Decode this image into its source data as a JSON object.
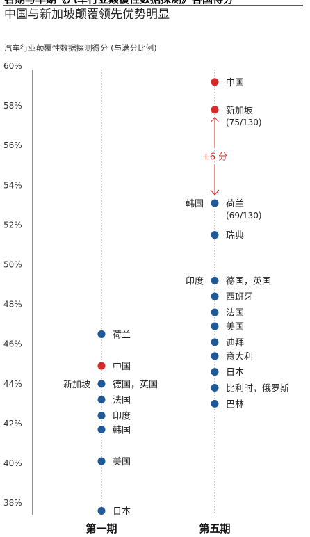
{
  "top_title": "名期与华期《汽车行业颠覆性数据探测》各国得分",
  "title": "中国与新加坡颠覆领先优势明显",
  "subtitle": "汽车行业颠覆性数据探测得分 (与满分比例)",
  "colors": {
    "highlight": "#d62b2b",
    "normal": "#1f5a96",
    "text": "#222222",
    "axis": "#222222",
    "dotted": "#888888"
  },
  "chart_data": {
    "type": "scatter",
    "ylim": [
      37.5,
      60
    ],
    "yticks": [
      {
        "value": 60,
        "label": "60%"
      },
      {
        "value": 58,
        "label": "58%"
      },
      {
        "value": 56,
        "label": "56%"
      },
      {
        "value": 54,
        "label": "54%"
      },
      {
        "value": 52,
        "label": "52%"
      },
      {
        "value": 50,
        "label": "50%"
      },
      {
        "value": 48,
        "label": "48%"
      },
      {
        "value": 46,
        "label": "46%"
      },
      {
        "value": 44,
        "label": "44%"
      },
      {
        "value": 42,
        "label": "42%"
      },
      {
        "value": 40,
        "label": "40%"
      },
      {
        "value": 38,
        "label": "38%"
      }
    ],
    "categories": [
      "第一期",
      "第五期"
    ],
    "points": [
      {
        "period": 0,
        "y": 46.5,
        "label": "荷兰",
        "highlight": false
      },
      {
        "period": 0,
        "y": 44.9,
        "label": "中国",
        "highlight": true
      },
      {
        "period": 0,
        "y": 44.0,
        "label": "德国，英国",
        "left_label": "新加坡",
        "highlight": false
      },
      {
        "period": 0,
        "y": 43.2,
        "label": "法国",
        "highlight": false
      },
      {
        "period": 0,
        "y": 42.4,
        "label": "印度",
        "highlight": false
      },
      {
        "period": 0,
        "y": 41.7,
        "label": "韩国",
        "highlight": false
      },
      {
        "period": 0,
        "y": 40.1,
        "label": "美国",
        "highlight": false
      },
      {
        "period": 0,
        "y": 37.6,
        "label": "日本",
        "highlight": false
      },
      {
        "period": 1,
        "y": 59.2,
        "label": "中国",
        "highlight": true
      },
      {
        "period": 1,
        "y": 57.8,
        "label": "新加坡",
        "sublabel": "(75/130)",
        "highlight": true
      },
      {
        "period": 1,
        "y": 53.1,
        "label": "荷兰",
        "sublabel": "(69/130)",
        "left_label": "韩国",
        "highlight": false
      },
      {
        "period": 1,
        "y": 51.5,
        "label": "瑞典",
        "highlight": false
      },
      {
        "period": 1,
        "y": 49.2,
        "label": "德国，英国",
        "left_label": "印度",
        "highlight": false
      },
      {
        "period": 1,
        "y": 48.4,
        "label": "西班牙",
        "highlight": false
      },
      {
        "period": 1,
        "y": 47.6,
        "label": "法国",
        "highlight": false
      },
      {
        "period": 1,
        "y": 46.9,
        "label": "美国",
        "highlight": false
      },
      {
        "period": 1,
        "y": 46.1,
        "label": "迪拜",
        "highlight": false
      },
      {
        "period": 1,
        "y": 45.4,
        "label": "意大利",
        "highlight": false
      },
      {
        "period": 1,
        "y": 44.6,
        "label": "日本",
        "highlight": false
      },
      {
        "period": 1,
        "y": 43.8,
        "label": "比利时，俄罗斯",
        "highlight": false
      },
      {
        "period": 1,
        "y": 43.0,
        "label": "巴林",
        "highlight": false
      }
    ],
    "annotation": {
      "label": "+6 分",
      "from": 53.1,
      "to": 57.8
    }
  }
}
